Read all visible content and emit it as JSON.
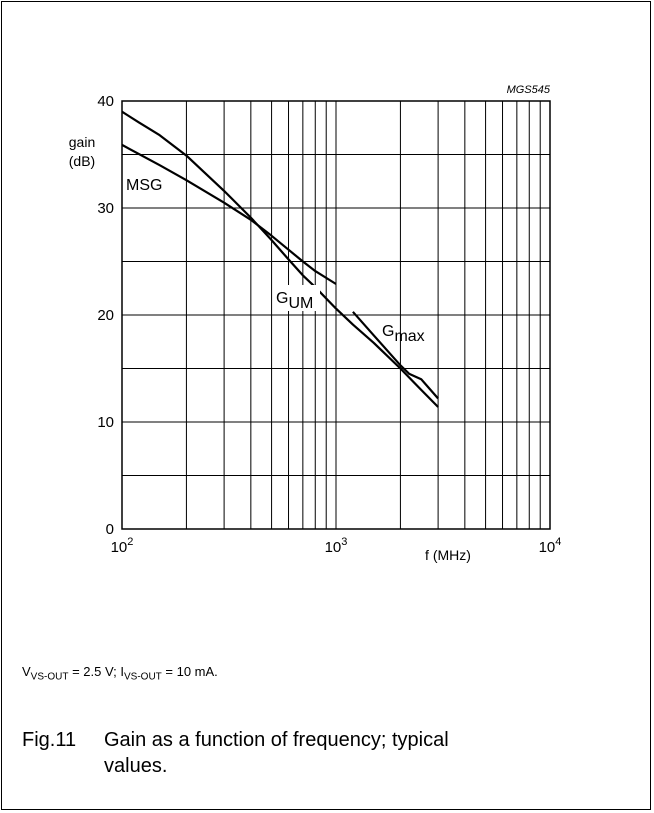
{
  "figure_code": "MGS545",
  "condition": {
    "v_sym": "V",
    "v_sub": "VS-OUT",
    "v_val": " = 2.5 V; ",
    "i_sym": "I",
    "i_sub": "VS-OUT",
    "i_val": " = 10 mA."
  },
  "caption": {
    "number": "Fig.11",
    "line1": "Gain as a function of frequency; typical",
    "line2": "values."
  },
  "chart_data": {
    "type": "line",
    "xscale": "log",
    "xlim": [
      100,
      10000
    ],
    "ylim": [
      0,
      40
    ],
    "ylabel_line1": "gain",
    "ylabel_line2": "(dB)",
    "xlabel": "f (MHz)",
    "grid": true,
    "x_ticks": [
      {
        "base": "10",
        "exp": "2"
      },
      {
        "base": "10",
        "exp": "3"
      },
      {
        "base": "10",
        "exp": "4"
      }
    ],
    "y_ticks": [
      "0",
      "10",
      "20",
      "30",
      "40"
    ],
    "series": [
      {
        "name": "MSG",
        "label": {
          "main": "MSG",
          "sub": ""
        },
        "x": [
          100,
          150,
          200,
          300,
          400,
          500,
          600,
          700,
          800,
          1000
        ],
        "y": [
          35.9,
          34.0,
          32.6,
          30.5,
          28.9,
          27.4,
          26.1,
          25.0,
          24.1,
          22.9
        ]
      },
      {
        "name": "GUM",
        "label": {
          "main": "G",
          "sub": "UM"
        },
        "x": [
          100,
          120,
          150,
          200,
          300,
          400,
          500,
          600,
          700,
          800,
          1000,
          1200,
          1500,
          2000,
          2500,
          3000
        ],
        "y": [
          39.0,
          38.0,
          36.8,
          34.9,
          31.6,
          29.1,
          27.0,
          25.2,
          23.7,
          22.6,
          20.6,
          19.1,
          17.4,
          15.0,
          13.0,
          11.4
        ]
      },
      {
        "name": "Gmax",
        "label": {
          "main": "G",
          "sub": "max"
        },
        "x": [
          1200,
          1500,
          2000,
          2200,
          2500,
          3000
        ],
        "y": [
          20.3,
          18.1,
          15.3,
          14.5,
          14.0,
          12.2
        ]
      }
    ]
  }
}
